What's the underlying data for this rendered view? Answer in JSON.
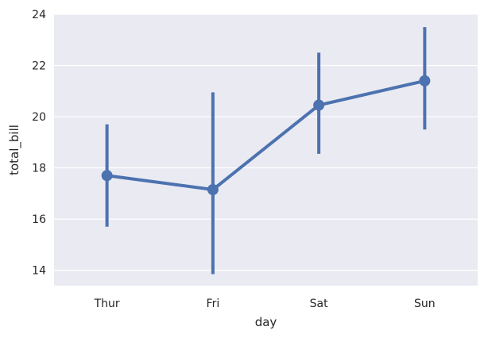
{
  "chart_data": {
    "type": "line",
    "style": "point-plot with error bars",
    "categories": [
      "Thur",
      "Fri",
      "Sat",
      "Sun"
    ],
    "series": [
      {
        "values": [
          17.7,
          17.15,
          20.45,
          21.4
        ],
        "ci_low": [
          15.7,
          13.85,
          18.55,
          19.5
        ],
        "ci_high": [
          19.7,
          20.95,
          22.5,
          23.5
        ]
      }
    ],
    "title": "",
    "xlabel": "day",
    "ylabel": "total_bill",
    "ylim": [
      13.4,
      24
    ],
    "yticks": [
      14,
      16,
      18,
      20,
      22,
      24
    ],
    "grid": true,
    "legend": "none",
    "colors": {
      "series": "#4c72b0",
      "background": "#eaeaf2",
      "grid": "#ffffff"
    }
  }
}
